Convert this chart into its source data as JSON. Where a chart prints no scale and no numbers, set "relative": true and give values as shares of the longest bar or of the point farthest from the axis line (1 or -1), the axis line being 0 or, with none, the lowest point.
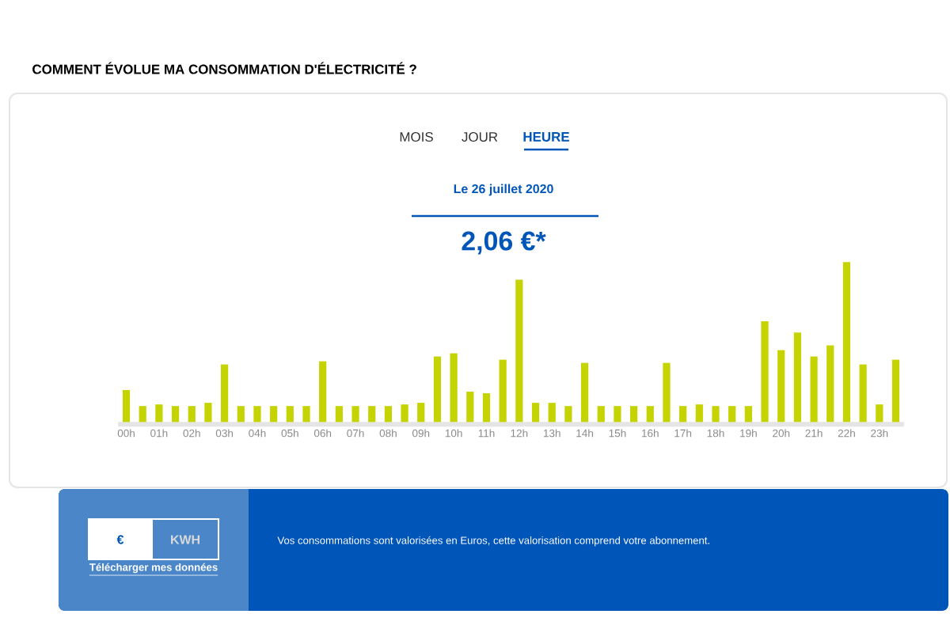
{
  "chart_data": {
    "type": "bar",
    "title": "COMMENT ÉVOLUE MA CONSOMMATION D'ÉLECTRICITÉ ?",
    "subtitle": "Le 26 juillet 2020",
    "annotations": [
      "MOIS",
      "JOUR",
      "HEURE",
      "2,06 €*",
      "€",
      "KWH",
      "Télécharger mes données",
      "Vos consommations sont valorisées en Euros, cette valorisation comprend votre abonnement."
    ],
    "categories": [
      "00h",
      null,
      "01h",
      null,
      "02h",
      null,
      "03h",
      null,
      "04h",
      null,
      "05h",
      null,
      "06h",
      null,
      "07h",
      null,
      "08h",
      null,
      "09h",
      null,
      "10h",
      null,
      "11h",
      null,
      "12h",
      null,
      "13h",
      null,
      "14h",
      null,
      "15h",
      null,
      "16h",
      null,
      "17h",
      null,
      "18h",
      null,
      "19h",
      null,
      "20h",
      null,
      "21h",
      null,
      "22h",
      null,
      "23h",
      null
    ],
    "values": [
      0.2,
      0.1,
      0.11,
      0.1,
      0.1,
      0.12,
      0.36,
      0.1,
      0.1,
      0.1,
      0.1,
      0.1,
      0.38,
      0.1,
      0.1,
      0.1,
      0.1,
      0.11,
      0.12,
      0.41,
      0.43,
      0.19,
      0.18,
      0.39,
      0.89,
      0.12,
      0.12,
      0.1,
      0.37,
      0.1,
      0.1,
      0.1,
      0.1,
      0.37,
      0.1,
      0.11,
      0.1,
      0.1,
      0.1,
      0.63,
      0.45,
      0.56,
      0.41,
      0.48,
      1,
      0.36,
      0.11,
      0.39
    ],
    "color": "#c5d300",
    "relative": true
  }
}
